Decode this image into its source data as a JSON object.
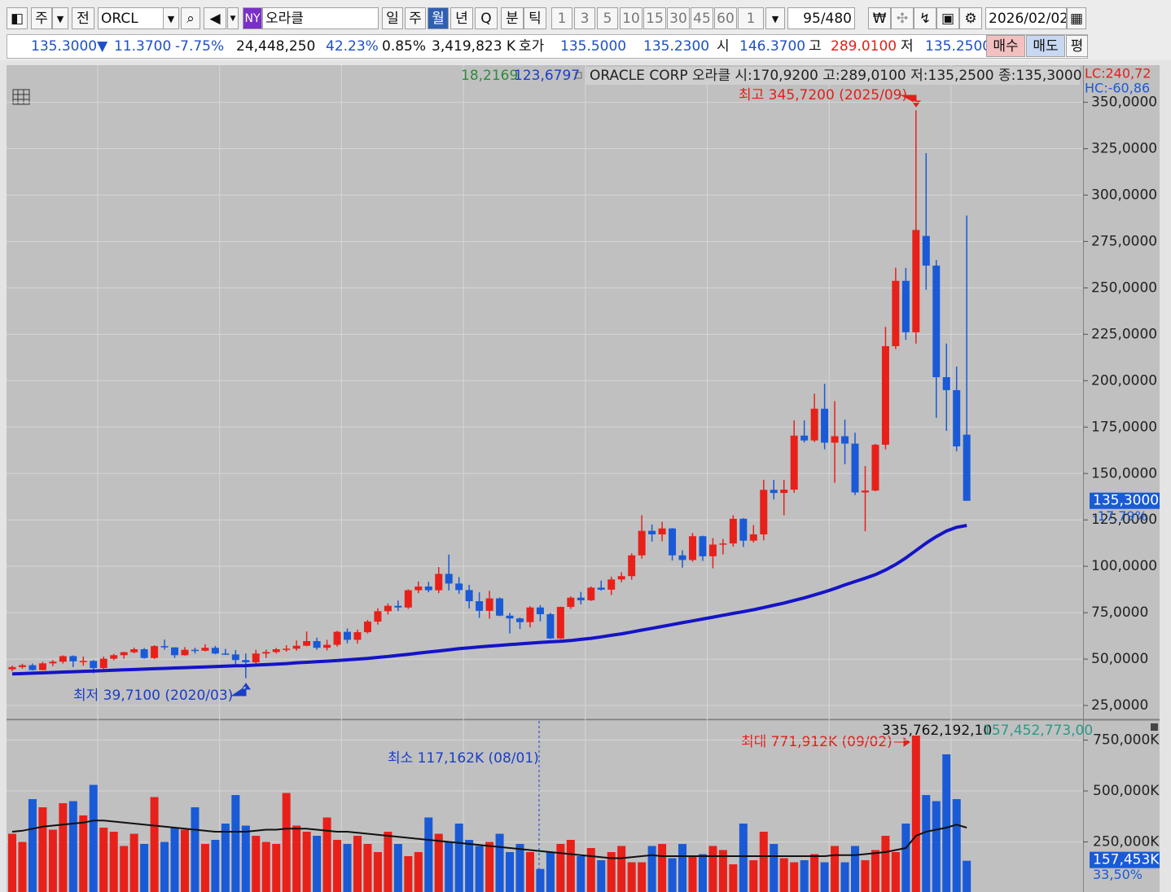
{
  "toolbar": {
    "market": "주",
    "prev": "전",
    "symbol": "ORCL",
    "exchange": "NY",
    "name": "오라클",
    "periods": [
      "일",
      "주",
      "월",
      "년",
      "Q",
      "분",
      "틱"
    ],
    "intervals": [
      "1",
      "3",
      "5",
      "10",
      "15",
      "30",
      "45",
      "60",
      "1"
    ],
    "count": "95",
    "max_count": "/480",
    "date": "2026/02/02"
  },
  "quote": {
    "price": "135.3000▼",
    "change": "11.3700",
    "rate": "-7.75%",
    "volume": "24,448,250",
    "vol_rate": "42.23%",
    "turnover": "0.85%",
    "amount": "3,419,823 K",
    "bid_label": "호가",
    "ask": "135.5000",
    "bid": "135.2300",
    "open_label": "시",
    "open": "146.3700",
    "high_label": "고",
    "high": "289.0100",
    "low_label": "저",
    "low": "135.2500",
    "buy": "매수",
    "sell": "매도",
    "avg": "평"
  },
  "chart_data": {
    "type": "candlestick",
    "header_green": "18,2169",
    "header_blue": "123,6797",
    "title": "ORACLE CORP  오라클 시:170,9200 고:289,0100 저:135,2500 종:135,3000",
    "lc": "LC:240,72",
    "hc": "HC:-60,86",
    "high_note": "최고 345,7200 (2025/09)",
    "low_note": "최저 39,7100 (2020/03)",
    "last_label": "135,3000",
    "last_rate": "-17,79%",
    "up_color": "#e8201a",
    "down_color": "#1a5ad6",
    "grid": true,
    "open": [
      44.5,
      45.7,
      46.7,
      44.1,
      47.7,
      48.6,
      51.6,
      48.8,
      49.0,
      45.2,
      50.2,
      52.1,
      53.7,
      55.3,
      50.6,
      57.0,
      56.3,
      52.1,
      55.0,
      54.5,
      56.1,
      53.0,
      52.5,
      49.5,
      48.3,
      53.0,
      53.8,
      55.3,
      55.6,
      57.2,
      59.7,
      56.1,
      57.7,
      64.7,
      60.4,
      64.5,
      70.2,
      75.8,
      78.7,
      77.8,
      87.1,
      89.1,
      87.1,
      95.9,
      90.7,
      87.2,
      81.2,
      76.0,
      82.7,
      73.4,
      71.9,
      69.9,
      77.8,
      74.2,
      61.1,
      78.1,
      83.1,
      81.7,
      88.5,
      87.4,
      92.9,
      94.7,
      105.9,
      119.1,
      117.2,
      120.4,
      105.9,
      103.4,
      116.2,
      105.4,
      111.7,
      112.3,
      125.6,
      113.8,
      117.2,
      141.2,
      139.5,
      141.3,
      170.4,
      167.8,
      184.9,
      166.6,
      170.1,
      166.1,
      139.8,
      140.8,
      165.5,
      218.6,
      253.8,
      226.1,
      278.0,
      262.0,
      201.9,
      194.9,
      170.92
    ],
    "high": [
      46.5,
      47.5,
      47.6,
      48.5,
      49.5,
      52.0,
      52.0,
      51.4,
      49.5,
      51.4,
      52.8,
      54.0,
      56.2,
      56.0,
      57.5,
      60.5,
      56.4,
      56.5,
      56.1,
      58.0,
      57.1,
      55.5,
      54.9,
      53.0,
      55.0,
      55.1,
      56.0,
      57.5,
      60.0,
      64.9,
      61.6,
      60.4,
      65.2,
      66.5,
      65.9,
      71.1,
      77.4,
      80.0,
      81.5,
      87.6,
      91.8,
      91.6,
      99.6,
      106.3,
      94.2,
      90.0,
      86.0,
      86.8,
      83.2,
      74.9,
      72.4,
      78.5,
      79.0,
      75.0,
      78.3,
      83.8,
      86.2,
      89.1,
      92.3,
      94.4,
      96.8,
      107.0,
      127.5,
      122.5,
      124.0,
      120.6,
      108.6,
      118.0,
      116.5,
      115.2,
      114.7,
      127.5,
      126.0,
      122.2,
      146.6,
      146.6,
      146.6,
      178.6,
      178.6,
      193.0,
      198.3,
      189.0,
      179.0,
      172.0,
      154.0,
      166.0,
      229.0,
      260.9,
      260.8,
      345.72,
      322.6,
      265.0,
      220.0,
      207.6,
      289.01
    ],
    "low": [
      43.5,
      44.8,
      43.8,
      43.9,
      46.2,
      47.6,
      45.7,
      46.4,
      42.4,
      44.5,
      49.4,
      50.2,
      53.1,
      50.2,
      50.0,
      55.1,
      50.6,
      51.9,
      53.0,
      54.2,
      52.6,
      52.3,
      47.3,
      39.71,
      47.7,
      50.6,
      53.0,
      54.0,
      54.5,
      56.9,
      55.0,
      54.7,
      56.7,
      58.5,
      58.3,
      63.8,
      68.6,
      74.0,
      75.9,
      77.0,
      85.5,
      86.0,
      85.5,
      87.0,
      85.2,
      77.3,
      72.2,
      71.8,
      73.1,
      63.8,
      66.2,
      67.1,
      70.3,
      60.8,
      60.8,
      77.0,
      79.5,
      81.3,
      86.9,
      84.5,
      91.4,
      92.8,
      104.1,
      113.3,
      113.5,
      103.1,
      99.3,
      102.5,
      102.9,
      98.9,
      106.4,
      110.6,
      110.4,
      112.8,
      114.0,
      136.0,
      127.5,
      139.6,
      166.7,
      166.9,
      163.0,
      145.0,
      155.0,
      138.4,
      118.9,
      140.4,
      163.0,
      217.0,
      222.0,
      220.0,
      249.0,
      180.0,
      173.0,
      162.0,
      135.25
    ],
    "close": [
      45.7,
      46.7,
      44.1,
      47.7,
      48.6,
      51.6,
      48.8,
      49.0,
      45.2,
      50.2,
      52.1,
      53.7,
      55.3,
      50.6,
      57.0,
      56.3,
      52.1,
      55.0,
      54.5,
      56.1,
      53.0,
      52.5,
      49.5,
      48.3,
      53.0,
      53.8,
      55.3,
      55.6,
      57.2,
      59.7,
      56.1,
      57.7,
      64.7,
      60.4,
      64.5,
      70.2,
      75.8,
      78.7,
      77.8,
      87.1,
      89.1,
      87.1,
      95.9,
      90.7,
      87.2,
      81.2,
      76.0,
      82.7,
      73.4,
      71.9,
      69.9,
      77.8,
      74.2,
      61.1,
      78.1,
      83.1,
      81.7,
      88.5,
      87.4,
      92.9,
      94.7,
      105.9,
      119.1,
      117.2,
      120.4,
      105.9,
      103.4,
      116.2,
      105.4,
      111.7,
      112.3,
      125.6,
      113.8,
      117.2,
      141.2,
      139.5,
      141.3,
      170.4,
      167.8,
      184.9,
      166.6,
      170.1,
      166.1,
      139.8,
      140.8,
      165.5,
      218.6,
      253.8,
      226.1,
      281.2,
      262.0,
      201.9,
      194.9,
      164.6,
      135.3
    ],
    "ma": {
      "color": "#1414c8",
      "values": [
        42.0,
        42.2,
        42.4,
        42.6,
        42.8,
        43.0,
        43.2,
        43.4,
        43.6,
        43.8,
        44.0,
        44.2,
        44.4,
        44.6,
        44.8,
        45.0,
        45.2,
        45.4,
        45.6,
        45.8,
        46.0,
        46.2,
        46.4,
        46.5,
        46.8,
        47.0,
        47.3,
        47.6,
        48.0,
        48.3,
        48.6,
        48.9,
        49.2,
        49.6,
        50.0,
        50.4,
        50.9,
        51.4,
        52.0,
        52.6,
        53.2,
        53.8,
        54.4,
        55.0,
        55.6,
        56.1,
        56.6,
        57.0,
        57.4,
        57.8,
        58.2,
        58.6,
        59.0,
        59.3,
        59.6,
        60.0,
        60.6,
        61.2,
        62.0,
        62.8,
        63.6,
        64.6,
        65.6,
        66.6,
        67.6,
        68.6,
        69.6,
        70.6,
        71.6,
        72.6,
        73.6,
        74.6,
        75.6,
        76.6,
        77.8,
        79.0,
        80.2,
        81.6,
        83.0,
        84.6,
        86.2,
        88.0,
        90.0,
        91.8,
        93.6,
        95.5,
        98.0,
        101.0,
        104.5,
        108.5,
        112.5,
        116.0,
        119.0,
        121.0,
        122.0
      ]
    },
    "ylim": [
      18,
      370
    ],
    "yticks": [
      {
        "value": 25,
        "label": "25,0000"
      },
      {
        "value": 50,
        "label": "50,0000"
      },
      {
        "value": 75,
        "label": "75,0000"
      },
      {
        "value": 100,
        "label": "100,0000"
      },
      {
        "value": 125,
        "label": "125,0000"
      },
      {
        "value": 150,
        "label": "150,0000"
      },
      {
        "value": 175,
        "label": "175,0000"
      },
      {
        "value": 200,
        "label": "200,0000"
      },
      {
        "value": 225,
        "label": "225,0000"
      },
      {
        "value": 250,
        "label": "250,0000"
      },
      {
        "value": 275,
        "label": "275,0000"
      },
      {
        "value": 300,
        "label": "300,0000"
      },
      {
        "value": 325,
        "label": "325,0000"
      },
      {
        "value": 350,
        "label": "350,0000"
      }
    ],
    "volume": {
      "header_black": "335,762,192,10",
      "header_teal": "157,452,773,00",
      "max_note": "최대 771,912K (09/02)",
      "min_note": "최소 117,162K (08/01)",
      "last_label": "157,453K",
      "last_rate": "33,50%",
      "values": [
        290000,
        250000,
        460000,
        420000,
        310000,
        440000,
        450000,
        380000,
        530000,
        320000,
        300000,
        230000,
        290000,
        240000,
        470000,
        250000,
        320000,
        310000,
        420000,
        240000,
        260000,
        340000,
        480000,
        330000,
        280000,
        250000,
        240000,
        490000,
        330000,
        300000,
        280000,
        370000,
        260000,
        240000,
        280000,
        240000,
        200000,
        300000,
        240000,
        180000,
        200000,
        370000,
        290000,
        250000,
        340000,
        260000,
        230000,
        250000,
        290000,
        200000,
        240000,
        200000,
        117162,
        200000,
        240000,
        260000,
        180000,
        220000,
        160000,
        200000,
        230000,
        150000,
        150000,
        230000,
        240000,
        170000,
        240000,
        180000,
        190000,
        230000,
        210000,
        140000,
        340000,
        160000,
        300000,
        240000,
        170000,
        150000,
        160000,
        190000,
        150000,
        230000,
        150000,
        230000,
        160000,
        210000,
        280000,
        200000,
        340000,
        771912,
        480000,
        450000,
        680000,
        460000,
        157453
      ],
      "ma": {
        "color": "#111111",
        "values": [
          300000,
          305000,
          315000,
          325000,
          330000,
          335000,
          340000,
          345000,
          355000,
          355000,
          350000,
          345000,
          340000,
          335000,
          330000,
          325000,
          320000,
          315000,
          310000,
          305000,
          300000,
          300000,
          300000,
          300000,
          305000,
          310000,
          310000,
          315000,
          315000,
          315000,
          310000,
          305000,
          300000,
          300000,
          295000,
          290000,
          285000,
          280000,
          275000,
          270000,
          265000,
          260000,
          255000,
          250000,
          245000,
          240000,
          235000,
          230000,
          225000,
          220000,
          215000,
          210000,
          205000,
          200000,
          195000,
          190000,
          185000,
          180000,
          175000,
          170000,
          170000,
          175000,
          180000,
          185000,
          180000,
          180000,
          180000,
          180000,
          180000,
          180000,
          180000,
          180000,
          180000,
          180000,
          180000,
          180000,
          180000,
          180000,
          180000,
          180000,
          180000,
          185000,
          185000,
          185000,
          190000,
          195000,
          200000,
          210000,
          220000,
          280000,
          300000,
          310000,
          320000,
          335000,
          320000
        ]
      },
      "ylim": [
        0,
        844000
      ],
      "yticks": [
        {
          "value": 250000,
          "label": "250,000K"
        },
        {
          "value": 500000,
          "label": "500,000K"
        },
        {
          "value": 750000,
          "label": "750,000K"
        }
      ]
    }
  }
}
